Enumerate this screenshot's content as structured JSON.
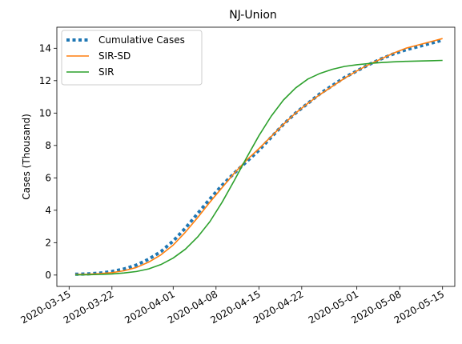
{
  "chart_data": {
    "type": "line",
    "title": "NJ-Union",
    "xlabel": "",
    "ylabel": "Cases (Thousand)",
    "ylim": [
      -0.7,
      15.3
    ],
    "xlim": [
      "2020-03-13",
      "2020-05-17"
    ],
    "yticks": [
      0,
      2,
      4,
      6,
      8,
      10,
      12,
      14
    ],
    "xticks": [
      "2020-03-15",
      "2020-03-22",
      "2020-04-01",
      "2020-04-08",
      "2020-04-15",
      "2020-04-22",
      "2020-05-01",
      "2020-05-08",
      "2020-05-15"
    ],
    "grid": false,
    "legend": "top-left",
    "series": [
      {
        "name": "Cumulative Cases",
        "color": "#1f77b4",
        "style": "dotted",
        "x": [
          "2020-03-16",
          "2020-03-18",
          "2020-03-20",
          "2020-03-22",
          "2020-03-24",
          "2020-03-26",
          "2020-03-28",
          "2020-03-30",
          "2020-04-01",
          "2020-04-03",
          "2020-04-05",
          "2020-04-07",
          "2020-04-09",
          "2020-04-11",
          "2020-04-13",
          "2020-04-15",
          "2020-04-17",
          "2020-04-19",
          "2020-04-21",
          "2020-04-23",
          "2020-04-25",
          "2020-04-27",
          "2020-04-29",
          "2020-05-01",
          "2020-05-03",
          "2020-05-05",
          "2020-05-07",
          "2020-05-09",
          "2020-05-11",
          "2020-05-13",
          "2020-05-15"
        ],
        "y": [
          0.05,
          0.07,
          0.12,
          0.22,
          0.38,
          0.62,
          0.98,
          1.45,
          2.1,
          2.9,
          3.8,
          4.7,
          5.55,
          6.3,
          7.0,
          7.7,
          8.5,
          9.3,
          10.0,
          10.6,
          11.2,
          11.7,
          12.2,
          12.6,
          13.0,
          13.35,
          13.65,
          13.9,
          14.1,
          14.3,
          14.5
        ]
      },
      {
        "name": "SIR-SD",
        "color": "#ff7f0e",
        "style": "solid",
        "x": [
          "2020-03-16",
          "2020-03-18",
          "2020-03-20",
          "2020-03-22",
          "2020-03-24",
          "2020-03-26",
          "2020-03-28",
          "2020-03-30",
          "2020-04-01",
          "2020-04-03",
          "2020-04-05",
          "2020-04-07",
          "2020-04-09",
          "2020-04-11",
          "2020-04-13",
          "2020-04-15",
          "2020-04-17",
          "2020-04-19",
          "2020-04-21",
          "2020-04-23",
          "2020-04-25",
          "2020-04-27",
          "2020-04-29",
          "2020-05-01",
          "2020-05-03",
          "2020-05-05",
          "2020-05-07",
          "2020-05-09",
          "2020-05-11",
          "2020-05-13",
          "2020-05-15"
        ],
        "y": [
          0.03,
          0.05,
          0.09,
          0.15,
          0.27,
          0.47,
          0.8,
          1.25,
          1.85,
          2.65,
          3.55,
          4.5,
          5.4,
          6.3,
          7.1,
          7.8,
          8.55,
          9.3,
          10.0,
          10.6,
          11.15,
          11.65,
          12.15,
          12.6,
          13.0,
          13.35,
          13.7,
          14.0,
          14.2,
          14.4,
          14.6
        ]
      },
      {
        "name": "SIR",
        "color": "#2ca02c",
        "style": "solid",
        "x": [
          "2020-03-16",
          "2020-03-18",
          "2020-03-20",
          "2020-03-22",
          "2020-03-24",
          "2020-03-26",
          "2020-03-28",
          "2020-03-30",
          "2020-04-01",
          "2020-04-03",
          "2020-04-05",
          "2020-04-07",
          "2020-04-09",
          "2020-04-11",
          "2020-04-13",
          "2020-04-15",
          "2020-04-17",
          "2020-04-19",
          "2020-04-21",
          "2020-04-23",
          "2020-04-25",
          "2020-04-27",
          "2020-04-29",
          "2020-05-01",
          "2020-05-03",
          "2020-05-05",
          "2020-05-07",
          "2020-05-09",
          "2020-05-11",
          "2020-05-13",
          "2020-05-15"
        ],
        "y": [
          0.01,
          0.02,
          0.04,
          0.07,
          0.13,
          0.22,
          0.38,
          0.65,
          1.05,
          1.6,
          2.35,
          3.3,
          4.5,
          5.85,
          7.25,
          8.6,
          9.8,
          10.8,
          11.55,
          12.1,
          12.45,
          12.7,
          12.88,
          12.98,
          13.06,
          13.12,
          13.16,
          13.19,
          13.21,
          13.23,
          13.25
        ]
      }
    ]
  }
}
